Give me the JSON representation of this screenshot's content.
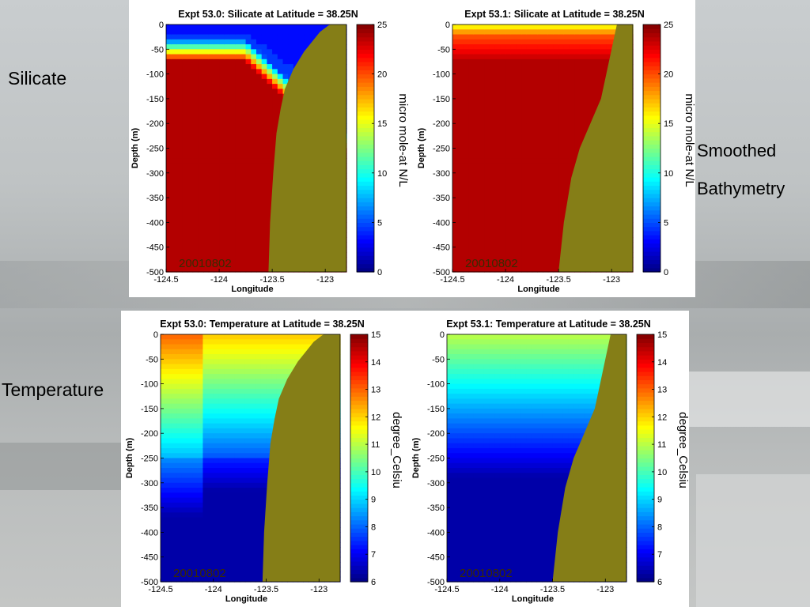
{
  "slide": {
    "labels": {
      "silicate": "Silicate",
      "temperature": "Temperature",
      "smoothed": "Smoothed",
      "bathymetry": "Bathymetry"
    }
  },
  "chart_data": [
    {
      "type": "heatmap",
      "title": "Expt 53.0: Silicate at Latitude = 38.25N",
      "xlabel": "Longitude",
      "ylabel": "Depth (m)",
      "xlim": [
        -124.5,
        -122.8
      ],
      "ylim": [
        -500,
        0
      ],
      "xticks": [
        "-124.5",
        "-124",
        "-123.5",
        "-123"
      ],
      "yticks": [
        "0",
        "-50",
        "-100",
        "-150",
        "-200",
        "-250",
        "-300",
        "-350",
        "-400",
        "-450",
        "-500"
      ],
      "colorbar_label": "micro mole-at N/L",
      "colorbar_range": [
        0,
        25
      ],
      "colorbar_ticks": [
        "0",
        "5",
        "10",
        "15",
        "20",
        "25"
      ],
      "date_label": "20010802",
      "bathymetry_x": [
        -123.535,
        -123.52,
        -123.49,
        -123.46,
        -123.42,
        -123.38,
        -123.3,
        -123.2,
        -123.05,
        -122.97,
        -122.95
      ],
      "bathymetry_y": [
        -500,
        -400,
        -300,
        -220,
        -170,
        -130,
        -90,
        -55,
        -15,
        -2,
        0
      ]
    },
    {
      "type": "heatmap",
      "title": "Expt 53.1: Silicate at Latitude = 38.25N",
      "xlabel": "Longitude",
      "ylabel": "Depth (m)",
      "xlim": [
        -124.5,
        -122.8
      ],
      "ylim": [
        -500,
        0
      ],
      "xticks": [
        "-124.5",
        "-124",
        "-123.5",
        "-123"
      ],
      "yticks": [
        "0",
        "-50",
        "-100",
        "-150",
        "-200",
        "-250",
        "-300",
        "-350",
        "-400",
        "-450",
        "-500"
      ],
      "colorbar_label": "micro mole-at N/L",
      "colorbar_range": [
        0,
        25
      ],
      "colorbar_ticks": [
        "0",
        "5",
        "10",
        "15",
        "20",
        "25"
      ],
      "date_label": "20010802",
      "bathymetry_x": [
        -123.5,
        -123.45,
        -123.38,
        -123.3,
        -123.2,
        -123.1,
        -123.05,
        -123.0,
        -122.95
      ],
      "bathymetry_y": [
        -500,
        -400,
        -310,
        -250,
        -200,
        -150,
        -100,
        -50,
        0
      ]
    },
    {
      "type": "heatmap",
      "title": "Expt 53.0: Temperature at Latitude = 38.25N",
      "xlabel": "Longitude",
      "ylabel": "Depth (m)",
      "xlim": [
        -124.5,
        -122.8
      ],
      "ylim": [
        -500,
        0
      ],
      "xticks": [
        "-124.5",
        "-124",
        "-123.5",
        "-123"
      ],
      "yticks": [
        "0",
        "-50",
        "-100",
        "-150",
        "-200",
        "-250",
        "-300",
        "-350",
        "-400",
        "-450",
        "-500"
      ],
      "colorbar_label": "degree_Celsiu",
      "colorbar_range": [
        6,
        15
      ],
      "colorbar_ticks": [
        "6",
        "7",
        "8",
        "9",
        "10",
        "11",
        "12",
        "13",
        "14",
        "15"
      ],
      "date_label": "20010802",
      "bathymetry_x": [
        -123.535,
        -123.52,
        -123.49,
        -123.46,
        -123.42,
        -123.38,
        -123.3,
        -123.2,
        -123.05,
        -122.97,
        -122.95
      ],
      "bathymetry_y": [
        -500,
        -400,
        -300,
        -220,
        -170,
        -130,
        -90,
        -55,
        -15,
        -2,
        0
      ]
    },
    {
      "type": "heatmap",
      "title": "Expt 53.1: Temperature at Latitude = 38.25N",
      "xlabel": "Longitude",
      "ylabel": "Depth (m)",
      "xlim": [
        -124.5,
        -122.8
      ],
      "ylim": [
        -500,
        0
      ],
      "xticks": [
        "-124.5",
        "-124",
        "-123.5",
        "-123"
      ],
      "yticks": [
        "0",
        "-50",
        "-100",
        "-150",
        "-200",
        "-250",
        "-300",
        "-350",
        "-400",
        "-450",
        "-500"
      ],
      "colorbar_label": "degree_Celsiu",
      "colorbar_range": [
        6,
        15
      ],
      "colorbar_ticks": [
        "6",
        "7",
        "8",
        "9",
        "10",
        "11",
        "12",
        "13",
        "14",
        "15"
      ],
      "date_label": "20010802",
      "bathymetry_x": [
        -123.5,
        -123.45,
        -123.38,
        -123.3,
        -123.2,
        -123.1,
        -123.05,
        -123.0,
        -122.95
      ],
      "bathymetry_y": [
        -500,
        -400,
        -310,
        -250,
        -200,
        -150,
        -100,
        -50,
        0
      ]
    }
  ]
}
